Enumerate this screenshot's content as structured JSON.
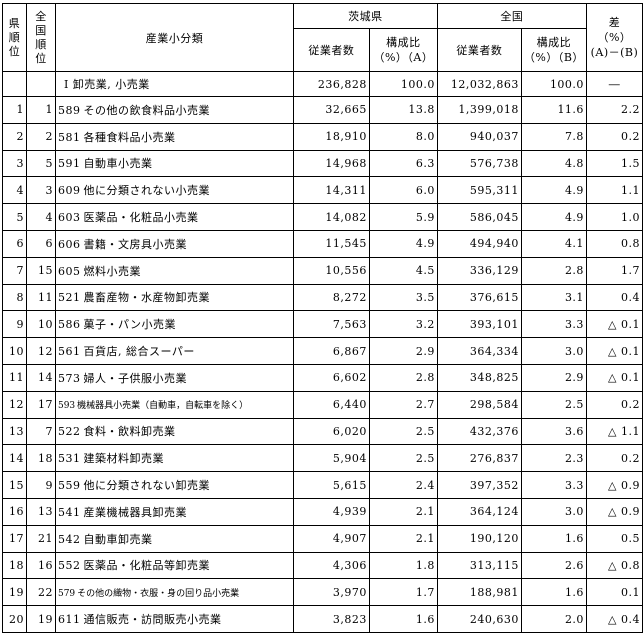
{
  "headers": {
    "pref_rank": "県順位",
    "nat_rank": "全国順位",
    "category": "産業小分類",
    "ibaraki": "茨城県",
    "national": "全国",
    "diff": "差",
    "diff_unit": "（%）",
    "diff_formula": "(A)－(B)",
    "employees": "従業者数",
    "share_a_label": "構成比",
    "share_a_unit": "（%）（A）",
    "employees_b": "従業者数",
    "share_b_label": "構成比",
    "share_b_unit": "（%）（B）"
  },
  "total": {
    "category": "I 卸売業, 小売業",
    "ibaraki_employees": "236,828",
    "ibaraki_share": "100.0",
    "national_employees": "12,032,863",
    "national_share": "100.0",
    "diff": "―"
  },
  "rows": [
    {
      "pref_rank": "1",
      "nat_rank": "1",
      "code": "589",
      "name": "その他の飲食料品小売業",
      "ib_emp": "32,665",
      "ib_share": "13.8",
      "nat_emp": "1,399,018",
      "nat_share": "11.6",
      "diff": "2.2",
      "small": false
    },
    {
      "pref_rank": "2",
      "nat_rank": "2",
      "code": "581",
      "name": "各種食料品小売業",
      "ib_emp": "18,910",
      "ib_share": "8.0",
      "nat_emp": "940,037",
      "nat_share": "7.8",
      "diff": "0.2",
      "small": false
    },
    {
      "pref_rank": "3",
      "nat_rank": "5",
      "code": "591",
      "name": "自動車小売業",
      "ib_emp": "14,968",
      "ib_share": "6.3",
      "nat_emp": "576,738",
      "nat_share": "4.8",
      "diff": "1.5",
      "small": false
    },
    {
      "pref_rank": "4",
      "nat_rank": "3",
      "code": "609",
      "name": "他に分類されない小売業",
      "ib_emp": "14,311",
      "ib_share": "6.0",
      "nat_emp": "595,311",
      "nat_share": "4.9",
      "diff": "1.1",
      "small": false
    },
    {
      "pref_rank": "5",
      "nat_rank": "4",
      "code": "603",
      "name": "医薬品・化粧品小売業",
      "ib_emp": "14,082",
      "ib_share": "5.9",
      "nat_emp": "586,045",
      "nat_share": "4.9",
      "diff": "1.0",
      "small": false
    },
    {
      "pref_rank": "6",
      "nat_rank": "6",
      "code": "606",
      "name": "書籍・文房具小売業",
      "ib_emp": "11,545",
      "ib_share": "4.9",
      "nat_emp": "494,940",
      "nat_share": "4.1",
      "diff": "0.8",
      "small": false
    },
    {
      "pref_rank": "7",
      "nat_rank": "15",
      "code": "605",
      "name": "燃料小売業",
      "ib_emp": "10,556",
      "ib_share": "4.5",
      "nat_emp": "336,129",
      "nat_share": "2.8",
      "diff": "1.7",
      "small": false
    },
    {
      "pref_rank": "8",
      "nat_rank": "11",
      "code": "521",
      "name": "農畜産物・水産物卸売業",
      "ib_emp": "8,272",
      "ib_share": "3.5",
      "nat_emp": "376,615",
      "nat_share": "3.1",
      "diff": "0.4",
      "small": false
    },
    {
      "pref_rank": "9",
      "nat_rank": "10",
      "code": "586",
      "name": "菓子・パン小売業",
      "ib_emp": "7,563",
      "ib_share": "3.2",
      "nat_emp": "393,101",
      "nat_share": "3.3",
      "diff": "△ 0.1",
      "small": false
    },
    {
      "pref_rank": "10",
      "nat_rank": "12",
      "code": "561",
      "name": "百貨店, 総合スーパー",
      "ib_emp": "6,867",
      "ib_share": "2.9",
      "nat_emp": "364,334",
      "nat_share": "3.0",
      "diff": "△ 0.1",
      "small": false
    },
    {
      "pref_rank": "11",
      "nat_rank": "14",
      "code": "573",
      "name": "婦人・子供服小売業",
      "ib_emp": "6,602",
      "ib_share": "2.8",
      "nat_emp": "348,825",
      "nat_share": "2.9",
      "diff": "△ 0.1",
      "small": false
    },
    {
      "pref_rank": "12",
      "nat_rank": "17",
      "code": "593",
      "name": "機械器具小売業（自動車，自転車を除く）",
      "ib_emp": "6,440",
      "ib_share": "2.7",
      "nat_emp": "298,584",
      "nat_share": "2.5",
      "diff": "0.2",
      "small": true
    },
    {
      "pref_rank": "13",
      "nat_rank": "7",
      "code": "522",
      "name": "食料・飲料卸売業",
      "ib_emp": "6,020",
      "ib_share": "2.5",
      "nat_emp": "432,376",
      "nat_share": "3.6",
      "diff": "△ 1.1",
      "small": false
    },
    {
      "pref_rank": "14",
      "nat_rank": "18",
      "code": "531",
      "name": "建築材料卸売業",
      "ib_emp": "5,904",
      "ib_share": "2.5",
      "nat_emp": "276,837",
      "nat_share": "2.3",
      "diff": "0.2",
      "small": false
    },
    {
      "pref_rank": "15",
      "nat_rank": "9",
      "code": "559",
      "name": "他に分類されない卸売業",
      "ib_emp": "5,615",
      "ib_share": "2.4",
      "nat_emp": "397,352",
      "nat_share": "3.3",
      "diff": "△ 0.9",
      "small": false
    },
    {
      "pref_rank": "16",
      "nat_rank": "13",
      "code": "541",
      "name": "産業機械器具卸売業",
      "ib_emp": "4,939",
      "ib_share": "2.1",
      "nat_emp": "364,124",
      "nat_share": "3.0",
      "diff": "△ 0.9",
      "small": false
    },
    {
      "pref_rank": "17",
      "nat_rank": "21",
      "code": "542",
      "name": "自動車卸売業",
      "ib_emp": "4,907",
      "ib_share": "2.1",
      "nat_emp": "190,120",
      "nat_share": "1.6",
      "diff": "0.5",
      "small": false
    },
    {
      "pref_rank": "18",
      "nat_rank": "16",
      "code": "552",
      "name": "医薬品・化粧品等卸売業",
      "ib_emp": "4,306",
      "ib_share": "1.8",
      "nat_emp": "313,115",
      "nat_share": "2.6",
      "diff": "△ 0.8",
      "small": false
    },
    {
      "pref_rank": "19",
      "nat_rank": "22",
      "code": "579",
      "name": "その他の織物・衣服・身の回り品小売業",
      "ib_emp": "3,970",
      "ib_share": "1.7",
      "nat_emp": "188,981",
      "nat_share": "1.6",
      "diff": "0.1",
      "small": true
    },
    {
      "pref_rank": "20",
      "nat_rank": "19",
      "code": "611",
      "name": "通信販売・訪問販売小売業",
      "ib_emp": "3,823",
      "ib_share": "1.6",
      "nat_emp": "240,630",
      "nat_share": "2.0",
      "diff": "△ 0.4",
      "small": false
    }
  ]
}
